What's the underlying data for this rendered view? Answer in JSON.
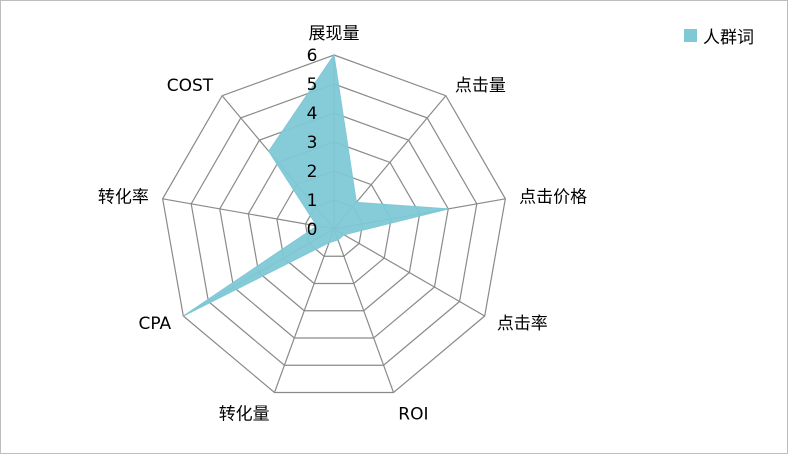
{
  "chart_data": {
    "type": "radar",
    "axes": [
      "展现量",
      "点击量",
      "点击价格",
      "点击率",
      "ROI",
      "转化量",
      "CPA",
      "转化率",
      "COST"
    ],
    "r_ticks": [
      "0",
      "1",
      "2",
      "3",
      "4",
      "5",
      "6"
    ],
    "rlim": [
      0,
      6
    ],
    "series": [
      {
        "name": "人群词",
        "values": [
          6,
          1.2,
          4,
          0.4,
          0.4,
          0.5,
          6,
          0.6,
          3.5
        ]
      }
    ],
    "legend_position": "top-right",
    "colors": {
      "fill": "#7fc8d6",
      "grid": "#8a8a8a",
      "axis": "#8a8a8a"
    }
  }
}
